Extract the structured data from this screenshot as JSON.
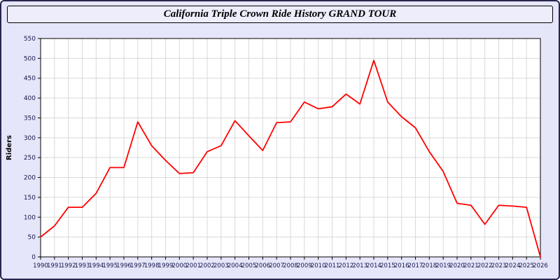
{
  "title": "California Triple Crown Ride History GRAND TOUR",
  "chart_data": {
    "type": "line",
    "title": "California Triple Crown Ride History GRAND TOUR",
    "xlabel": "",
    "ylabel": "Riders",
    "ylim": [
      0,
      550
    ],
    "ytick_interval": 50,
    "grid": true,
    "legend": "none",
    "x": [
      1990,
      1991,
      1992,
      1993,
      1994,
      1995,
      1996,
      1997,
      1998,
      1999,
      2000,
      2001,
      2002,
      2003,
      2004,
      2005,
      2006,
      2007,
      2008,
      2009,
      2010,
      2011,
      2012,
      2013,
      2014,
      2015,
      2016,
      2017,
      2018,
      2019,
      2020,
      2021,
      2022,
      2023,
      2024,
      2025,
      2026
    ],
    "series": [
      {
        "name": "Riders",
        "color": "#ff0000",
        "values": [
          50,
          78,
          125,
          125,
          160,
          225,
          225,
          340,
          280,
          243,
          210,
          212,
          265,
          280,
          343,
          305,
          268,
          338,
          340,
          390,
          373,
          378,
          410,
          385,
          495,
          390,
          353,
          325,
          265,
          215,
          135,
          130,
          82,
          130,
          128,
          125,
          0
        ]
      }
    ],
    "colors": {
      "background": "#e6e6fa",
      "plot_background": "#ffffff",
      "grid": "#d9d9d9",
      "axis": "#000000",
      "tick_text": "#15154a",
      "line": "#ff0000",
      "border": "#26264f"
    }
  }
}
